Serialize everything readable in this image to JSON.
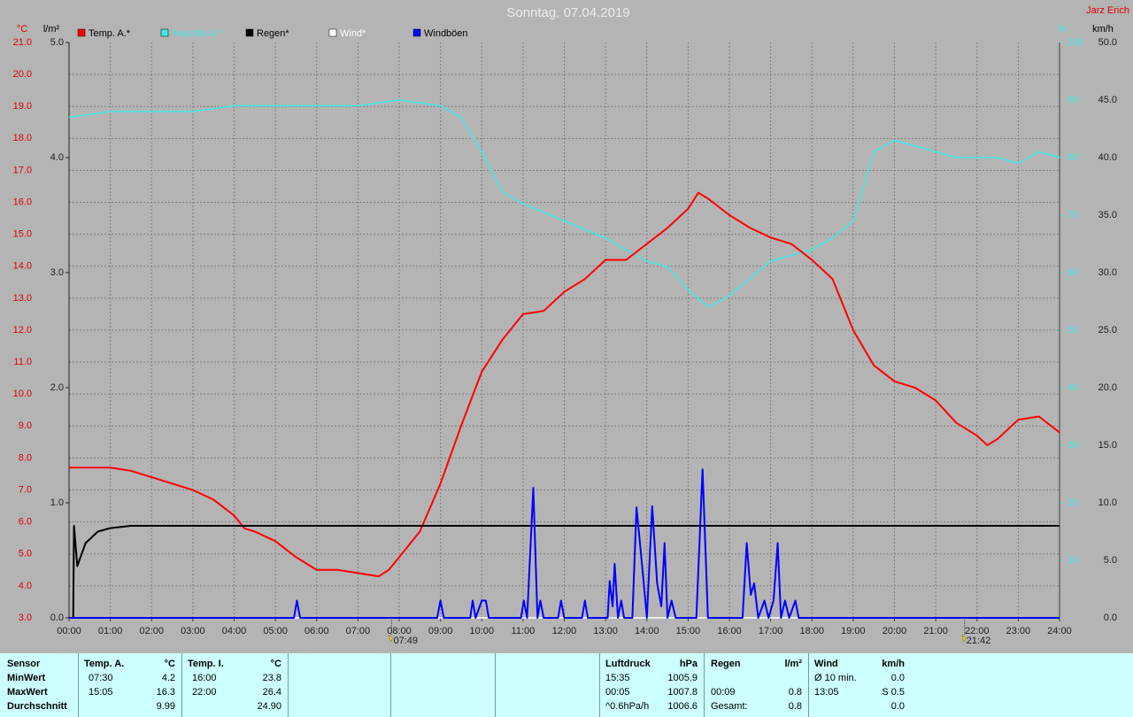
{
  "chart_data": {
    "type": "line",
    "title": "Sonntag, 07.04.2019",
    "author": "Jarz Erich",
    "ylabel": "°C",
    "y2label": "%",
    "y3label": "l/m²",
    "y4label": "km/h",
    "xlim": [
      0,
      24
    ],
    "xticks": [
      {
        "value": 0,
        "label": "00:00"
      },
      {
        "value": 1,
        "label": "01:00"
      },
      {
        "value": 2,
        "label": "02:00"
      },
      {
        "value": 3,
        "label": "03:00"
      },
      {
        "value": 4,
        "label": "04:00"
      },
      {
        "value": 5,
        "label": "05:00"
      },
      {
        "value": 6,
        "label": "06:00"
      },
      {
        "value": 7,
        "label": "07:00"
      },
      {
        "value": 8,
        "label": "08:00"
      },
      {
        "value": 9,
        "label": "09:00"
      },
      {
        "value": 10,
        "label": "10:00"
      },
      {
        "value": 11,
        "label": "11:00"
      },
      {
        "value": 12,
        "label": "12:00"
      },
      {
        "value": 13,
        "label": "13:00"
      },
      {
        "value": 14,
        "label": "14:00"
      },
      {
        "value": 15,
        "label": "15:00"
      },
      {
        "value": 16,
        "label": "16:00"
      },
      {
        "value": 17,
        "label": "17:00"
      },
      {
        "value": 18,
        "label": "18:00"
      },
      {
        "value": 19,
        "label": "19:00"
      },
      {
        "value": 20,
        "label": "20:00"
      },
      {
        "value": 21,
        "label": "21:00"
      },
      {
        "value": 22,
        "label": "22:00"
      },
      {
        "value": 23,
        "label": "23:00"
      },
      {
        "value": 24,
        "label": "24:00"
      }
    ],
    "ylim": [
      3,
      21
    ],
    "yticks": [
      {
        "value": 3,
        "label": "3.0"
      },
      {
        "value": 4,
        "label": "4.0"
      },
      {
        "value": 5,
        "label": "5.0"
      },
      {
        "value": 6,
        "label": "6.0"
      },
      {
        "value": 7,
        "label": "7.0"
      },
      {
        "value": 8,
        "label": "8.0"
      },
      {
        "value": 9,
        "label": "9.0"
      },
      {
        "value": 10,
        "label": "10.0"
      },
      {
        "value": 11,
        "label": "11.0"
      },
      {
        "value": 12,
        "label": "12.0"
      },
      {
        "value": 13,
        "label": "13.0"
      },
      {
        "value": 14,
        "label": "14.0"
      },
      {
        "value": 15,
        "label": "15.0"
      },
      {
        "value": 16,
        "label": "16.0"
      },
      {
        "value": 17,
        "label": "17.0"
      },
      {
        "value": 18,
        "label": "18.0"
      },
      {
        "value": 19,
        "label": "19.0"
      },
      {
        "value": 20,
        "label": "20.0"
      },
      {
        "value": 21,
        "label": "21.0"
      }
    ],
    "y2lim": [
      0,
      100
    ],
    "y2ticks": [
      10,
      20,
      30,
      40,
      50,
      60,
      70,
      80,
      90,
      100
    ],
    "y3lim": [
      0,
      5
    ],
    "y3ticks": [
      {
        "value": 0,
        "label": "0.0"
      },
      {
        "value": 1,
        "label": "1.0"
      },
      {
        "value": 2,
        "label": "2.0"
      },
      {
        "value": 3,
        "label": "3.0"
      },
      {
        "value": 4,
        "label": "4.0"
      },
      {
        "value": 5,
        "label": "5.0"
      }
    ],
    "y4lim": [
      0,
      50
    ],
    "y4ticks": [
      {
        "value": 0,
        "label": "0.0"
      },
      {
        "value": 5,
        "label": "5.0"
      },
      {
        "value": 10,
        "label": "10.0"
      },
      {
        "value": 15,
        "label": "15.0"
      },
      {
        "value": 20,
        "label": "20.0"
      },
      {
        "value": 25,
        "label": "25.0"
      },
      {
        "value": 30,
        "label": "30.0"
      },
      {
        "value": 35,
        "label": "35.0"
      },
      {
        "value": 40,
        "label": "40.0"
      },
      {
        "value": 45,
        "label": "45.0"
      },
      {
        "value": 50,
        "label": "50.0"
      }
    ],
    "grid": true,
    "series": [
      {
        "name": "Temp. A.*",
        "color": "#ff0000",
        "axis": "y",
        "x": [
          0,
          0.5,
          1,
          1.5,
          2,
          2.5,
          3,
          3.5,
          4,
          4.25,
          4.5,
          5,
          5.5,
          6,
          6.5,
          7,
          7.5,
          7.75,
          8,
          8.5,
          9,
          9.5,
          10,
          10.5,
          11,
          11.5,
          12,
          12.5,
          13,
          13.5,
          14,
          14.5,
          15,
          15.25,
          15.5,
          16,
          16.5,
          17,
          17.5,
          18,
          18.5,
          19,
          19.5,
          20,
          20.5,
          21,
          21.5,
          22,
          22.25,
          22.5,
          23,
          23.5,
          24
        ],
        "values": [
          7.7,
          7.7,
          7.7,
          7.6,
          7.4,
          7.2,
          7.0,
          6.7,
          6.2,
          5.8,
          5.7,
          5.4,
          4.9,
          4.5,
          4.5,
          4.4,
          4.3,
          4.5,
          4.9,
          5.7,
          7.2,
          9.0,
          10.7,
          11.7,
          12.5,
          12.6,
          13.2,
          13.6,
          14.2,
          14.2,
          14.7,
          15.2,
          15.8,
          16.3,
          16.1,
          15.6,
          15.2,
          14.9,
          14.7,
          14.2,
          13.6,
          12.0,
          10.9,
          10.4,
          10.2,
          9.8,
          9.1,
          8.7,
          8.4,
          8.6,
          9.2,
          9.3,
          8.8
        ]
      },
      {
        "name": "Feuchte A.*",
        "color": "#40e8e8",
        "axis": "y2",
        "x": [
          0,
          1,
          3,
          4,
          7,
          8,
          9,
          9.5,
          10,
          10.5,
          11,
          12,
          13,
          13.5,
          14,
          14.5,
          15,
          15.5,
          16,
          16.5,
          17,
          17.5,
          18,
          18.5,
          19,
          19.5,
          20,
          20.5,
          21,
          21.5,
          22,
          22.5,
          23,
          23.5,
          24
        ],
        "values": [
          87,
          88,
          88,
          89,
          89,
          90,
          89,
          87,
          81,
          74,
          72,
          69,
          66,
          64,
          62,
          61,
          57,
          54,
          56,
          59,
          62,
          63,
          64,
          66,
          69,
          81,
          83,
          82,
          81,
          80,
          80,
          80,
          79,
          81,
          80
        ]
      },
      {
        "name": "Regen*",
        "color": "#000000",
        "axis": "y3",
        "x": [
          0,
          0.1,
          0.12,
          0.2,
          0.4,
          0.7,
          1,
          1.5,
          24
        ],
        "values": [
          0,
          0,
          0.8,
          0.45,
          0.65,
          0.75,
          0.78,
          0.8,
          0.8
        ]
      },
      {
        "name": "Wind*",
        "color": "#ffffff",
        "axis": "y4",
        "x": [
          0,
          24
        ],
        "values": [
          0,
          0
        ]
      },
      {
        "name": "Windböen",
        "color": "#0000ff",
        "axis": "y4",
        "x": [
          0,
          5.45,
          5.52,
          5.6,
          8.92,
          9,
          9.08,
          9.72,
          9.78,
          9.85,
          10,
          10.1,
          10.17,
          10.95,
          11.02,
          11.1,
          11.25,
          11.35,
          11.42,
          11.5,
          11.85,
          11.92,
          12,
          12.43,
          12.5,
          12.57,
          13.05,
          13.1,
          13.17,
          13.22,
          13.3,
          13.38,
          13.45,
          13.65,
          13.75,
          13.9,
          14,
          14.13,
          14.25,
          14.35,
          14.43,
          14.5,
          14.6,
          14.7,
          15.2,
          15.35,
          15.48,
          16.32,
          16.42,
          16.52,
          16.6,
          16.7,
          16.85,
          16.95,
          17.07,
          17.17,
          17.25,
          17.35,
          17.45,
          17.6,
          17.68,
          24
        ],
        "values": [
          0,
          0,
          1.5,
          0,
          0,
          1.5,
          0,
          0,
          1.5,
          0,
          1.5,
          1.5,
          0,
          0,
          1.5,
          0,
          11.3,
          0,
          1.5,
          0,
          0,
          1.5,
          0,
          0,
          1.5,
          0,
          0,
          3.2,
          1,
          4.7,
          0,
          1.5,
          0,
          0,
          9.6,
          4,
          0,
          9.7,
          3,
          1,
          6.5,
          0,
          1.5,
          0,
          0,
          12.9,
          0,
          0,
          6.5,
          2,
          3,
          0,
          1.5,
          0,
          1.5,
          6.5,
          0,
          1.5,
          0,
          1.5,
          0,
          0
        ]
      }
    ],
    "annotations": [
      {
        "x": 7.8167,
        "label": "07:49"
      },
      {
        "x": 21.7,
        "label": "21:42"
      }
    ]
  },
  "table": {
    "header": [
      "Sensor",
      "Temp. A.",
      "°C",
      "Temp. I.",
      "°C",
      "Luftdruck",
      "hPa",
      "Regen",
      "l/m²",
      "Wind",
      "km/h"
    ],
    "rows": [
      [
        "MinWert",
        "07:30",
        "4.2",
        "16:00",
        "23.8",
        "15:35",
        "1005.9",
        null,
        null,
        "Ø 10 min.",
        "0.0"
      ],
      [
        "MaxWert",
        "15:05",
        "16.3",
        "22:00",
        "26.4",
        "00:05",
        "1007.8",
        "00:09",
        "0.8",
        "13:05",
        "S 0.5"
      ],
      [
        "Durchschnitt",
        null,
        "9.99",
        null,
        "24.90",
        "^0.6hPa/h",
        "1006.6",
        "Gesamt:",
        "0.8",
        null,
        "0.0"
      ]
    ]
  }
}
